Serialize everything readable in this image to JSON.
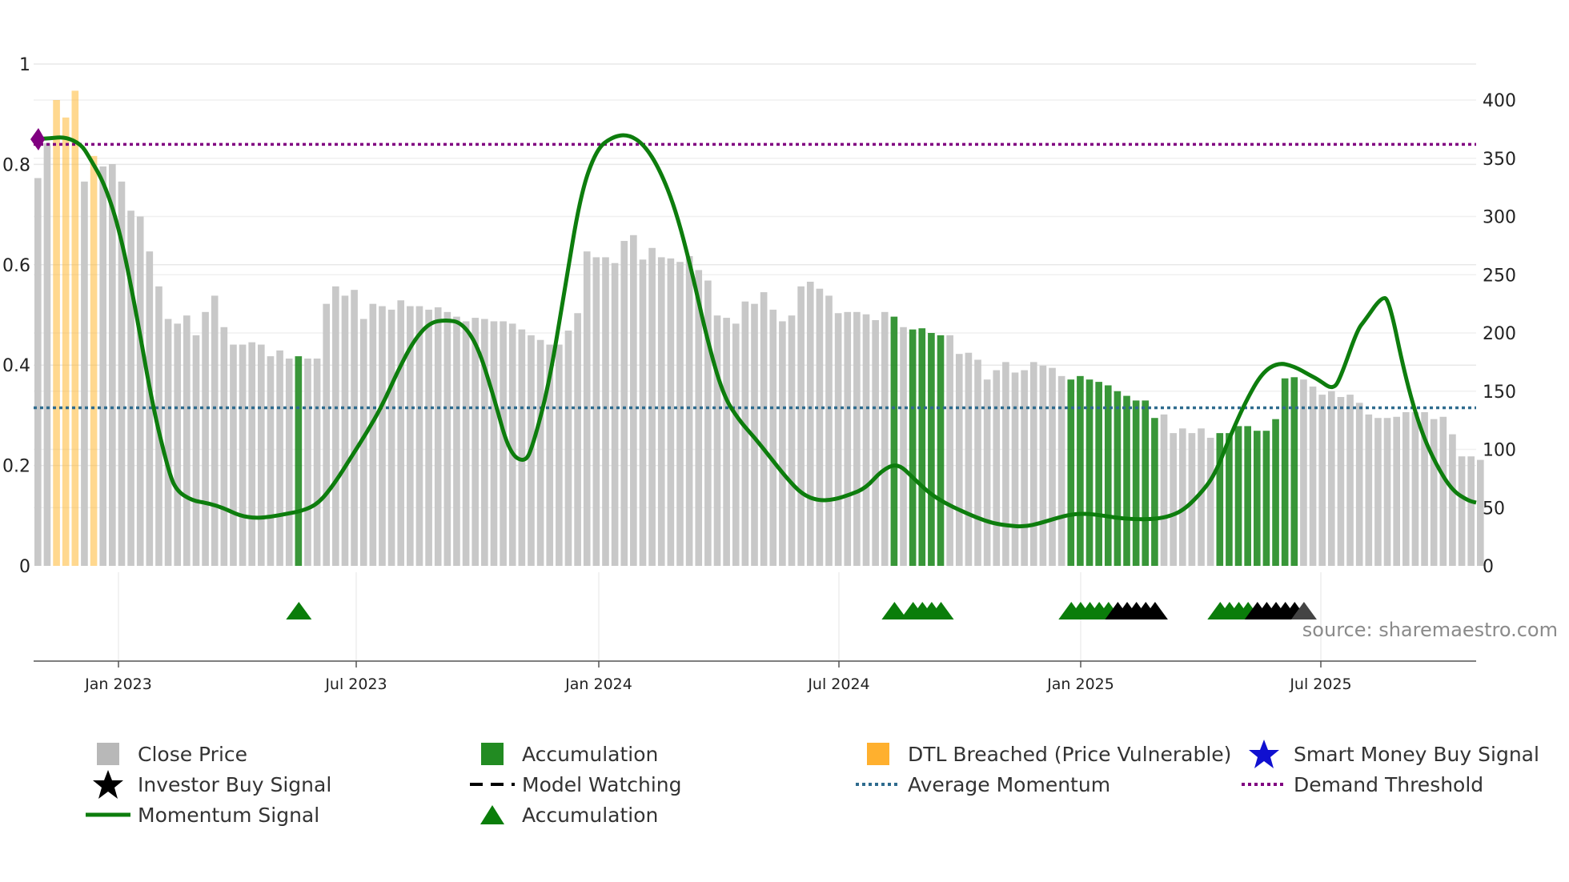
{
  "chart_data": {
    "type": "bar+line",
    "title": "",
    "source_text": "source: sharemaestro.com",
    "left_axis": {
      "ticks": [
        "0",
        "0.2",
        "0.4",
        "0.6",
        "0.8",
        "1"
      ],
      "range": [
        0,
        1
      ]
    },
    "right_axis": {
      "ticks": [
        "0",
        "50",
        "100",
        "150",
        "200",
        "250",
        "300",
        "350",
        "400"
      ],
      "range": [
        0,
        400
      ]
    },
    "x_tick_labels": [
      "Jan 2023",
      "Jul 2023",
      "Jan 2024",
      "Jul 2024",
      "Jan 2025",
      "Jul 2025"
    ],
    "weeks": 155,
    "bars_close_price": [
      333,
      363,
      400,
      385,
      408,
      330,
      352,
      343,
      345,
      330,
      305,
      300,
      270,
      240,
      212,
      208,
      215,
      198,
      218,
      232,
      205,
      190,
      190,
      192,
      190,
      180,
      185,
      178,
      180,
      178,
      178,
      225,
      240,
      232,
      237,
      212,
      225,
      223,
      220,
      228,
      223,
      223,
      220,
      222,
      218,
      214,
      210,
      213,
      212,
      210,
      210,
      208,
      203,
      198,
      194,
      190,
      190,
      202,
      217,
      270,
      265,
      265,
      260,
      279,
      284,
      263,
      273,
      265,
      264,
      261,
      266,
      254,
      245,
      215,
      213,
      208,
      227,
      225,
      235,
      220,
      210,
      215,
      240,
      244,
      238,
      232,
      217,
      218,
      218,
      216,
      211,
      218,
      214,
      205,
      203,
      204,
      200,
      198,
      198,
      182,
      183,
      177,
      160,
      168,
      175,
      166,
      168,
      175,
      172,
      170,
      163,
      160,
      163,
      160,
      158,
      155,
      150,
      146,
      142,
      142,
      127,
      130,
      114,
      118,
      114,
      118,
      110,
      114,
      114,
      120,
      120,
      116,
      116,
      126,
      161,
      162,
      160,
      154,
      147,
      150,
      145,
      147,
      140,
      130,
      127,
      127,
      128,
      132,
      132,
      132,
      126,
      128,
      113,
      94,
      94,
      91
    ],
    "accumulation_weeks": [
      28,
      92,
      94,
      95,
      96,
      97,
      111,
      112,
      113,
      114,
      115,
      116,
      117,
      118,
      119,
      120,
      127,
      128,
      129,
      130,
      131,
      132,
      133,
      134,
      135
    ],
    "dtl_breached_weeks": [
      2,
      3,
      4,
      6
    ],
    "momentum_signal": [
      [
        0,
        0.85
      ],
      [
        2,
        0.852
      ],
      [
        4,
        0.855
      ],
      [
        6,
        0.84
      ],
      [
        7,
        0.815
      ],
      [
        9,
        0.76
      ],
      [
        11,
        0.66
      ],
      [
        13,
        0.5
      ],
      [
        15,
        0.32
      ],
      [
        17,
        0.19
      ],
      [
        18,
        0.15
      ],
      [
        20,
        0.13
      ],
      [
        22,
        0.125
      ],
      [
        24,
        0.115
      ],
      [
        26,
        0.1
      ],
      [
        28,
        0.095
      ],
      [
        30,
        0.098
      ],
      [
        32,
        0.104
      ],
      [
        34,
        0.11
      ],
      [
        36,
        0.125
      ],
      [
        38,
        0.165
      ],
      [
        40,
        0.215
      ],
      [
        42,
        0.265
      ],
      [
        44,
        0.32
      ],
      [
        46,
        0.39
      ],
      [
        48,
        0.45
      ],
      [
        50,
        0.485
      ],
      [
        52,
        0.49
      ],
      [
        54,
        0.485
      ],
      [
        56,
        0.44
      ],
      [
        58,
        0.34
      ],
      [
        60,
        0.225
      ],
      [
        62,
        0.205
      ],
      [
        63,
        0.24
      ],
      [
        65,
        0.36
      ],
      [
        67,
        0.55
      ],
      [
        69,
        0.74
      ],
      [
        71,
        0.83
      ],
      [
        73,
        0.855
      ],
      [
        75,
        0.86
      ],
      [
        77,
        0.84
      ],
      [
        79,
        0.79
      ],
      [
        81,
        0.71
      ],
      [
        83,
        0.59
      ],
      [
        85,
        0.45
      ],
      [
        87,
        0.34
      ],
      [
        89,
        0.29
      ],
      [
        91,
        0.255
      ],
      [
        93,
        0.215
      ],
      [
        95,
        0.175
      ],
      [
        97,
        0.142
      ],
      [
        99,
        0.13
      ],
      [
        101,
        0.132
      ],
      [
        103,
        0.142
      ],
      [
        105,
        0.155
      ],
      [
        107,
        0.19
      ],
      [
        109,
        0.205
      ],
      [
        111,
        0.175
      ],
      [
        113,
        0.145
      ],
      [
        115,
        0.125
      ],
      [
        117,
        0.11
      ],
      [
        119,
        0.096
      ],
      [
        121,
        0.085
      ],
      [
        123,
        0.08
      ],
      [
        125,
        0.078
      ],
      [
        127,
        0.085
      ],
      [
        129,
        0.095
      ],
      [
        131,
        0.103
      ],
      [
        133,
        0.104
      ],
      [
        135,
        0.1
      ],
      [
        137,
        0.095
      ],
      [
        139,
        0.093
      ],
      [
        141,
        0.093
      ],
      [
        143,
        0.097
      ],
      [
        145,
        0.11
      ],
      [
        147,
        0.14
      ],
      [
        149,
        0.18
      ],
      [
        151,
        0.26
      ],
      [
        153,
        0.33
      ],
      [
        155,
        0.385
      ],
      [
        157,
        0.405
      ],
      [
        159,
        0.398
      ],
      [
        161,
        0.38
      ],
      [
        162,
        0.372
      ],
      [
        164,
        0.35
      ],
      [
        165,
        0.38
      ],
      [
        167,
        0.47
      ],
      [
        168,
        0.49
      ],
      [
        170,
        0.535
      ],
      [
        171,
        0.532
      ],
      [
        173,
        0.38
      ],
      [
        175,
        0.27
      ],
      [
        177,
        0.2
      ],
      [
        179,
        0.15
      ],
      [
        181,
        0.13
      ],
      [
        182,
        0.126
      ]
    ],
    "momentum_x_scale_weeks": 182,
    "accumulation_markers_weeks": [
      28,
      92,
      94,
      95,
      96,
      97,
      111,
      112,
      113,
      114,
      115,
      127,
      128,
      129,
      130
    ],
    "investor_buy_markers_weeks": [
      116,
      117,
      118,
      119,
      120,
      131,
      132,
      133,
      134,
      135
    ],
    "model_watching_markers_weeks": [
      136
    ],
    "average_momentum": 0.315,
    "demand_threshold": 0.84,
    "colors": {
      "close_price": "#c8c8c8",
      "accumulation": "#228b22",
      "dtl_breached": "#ffb833",
      "momentum": "#0d7d0d",
      "average_momentum": "#2e6b8e",
      "demand_threshold": "#800080",
      "smart_money": "#1010d0",
      "investor": "#000000",
      "grid": "#e8e8e8"
    }
  },
  "legend": {
    "close_price": "Close Price",
    "accumulation_bar": "Accumulation",
    "dtl_breached": "DTL Breached (Price Vulnerable)",
    "smart_money": "Smart Money Buy Signal",
    "investor_buy": "Investor Buy Signal",
    "model_watching": "Model Watching",
    "average_momentum": "Average Momentum",
    "demand_threshold": "Demand Threshold",
    "momentum_signal": "Momentum Signal",
    "accumulation_marker": "Accumulation"
  }
}
